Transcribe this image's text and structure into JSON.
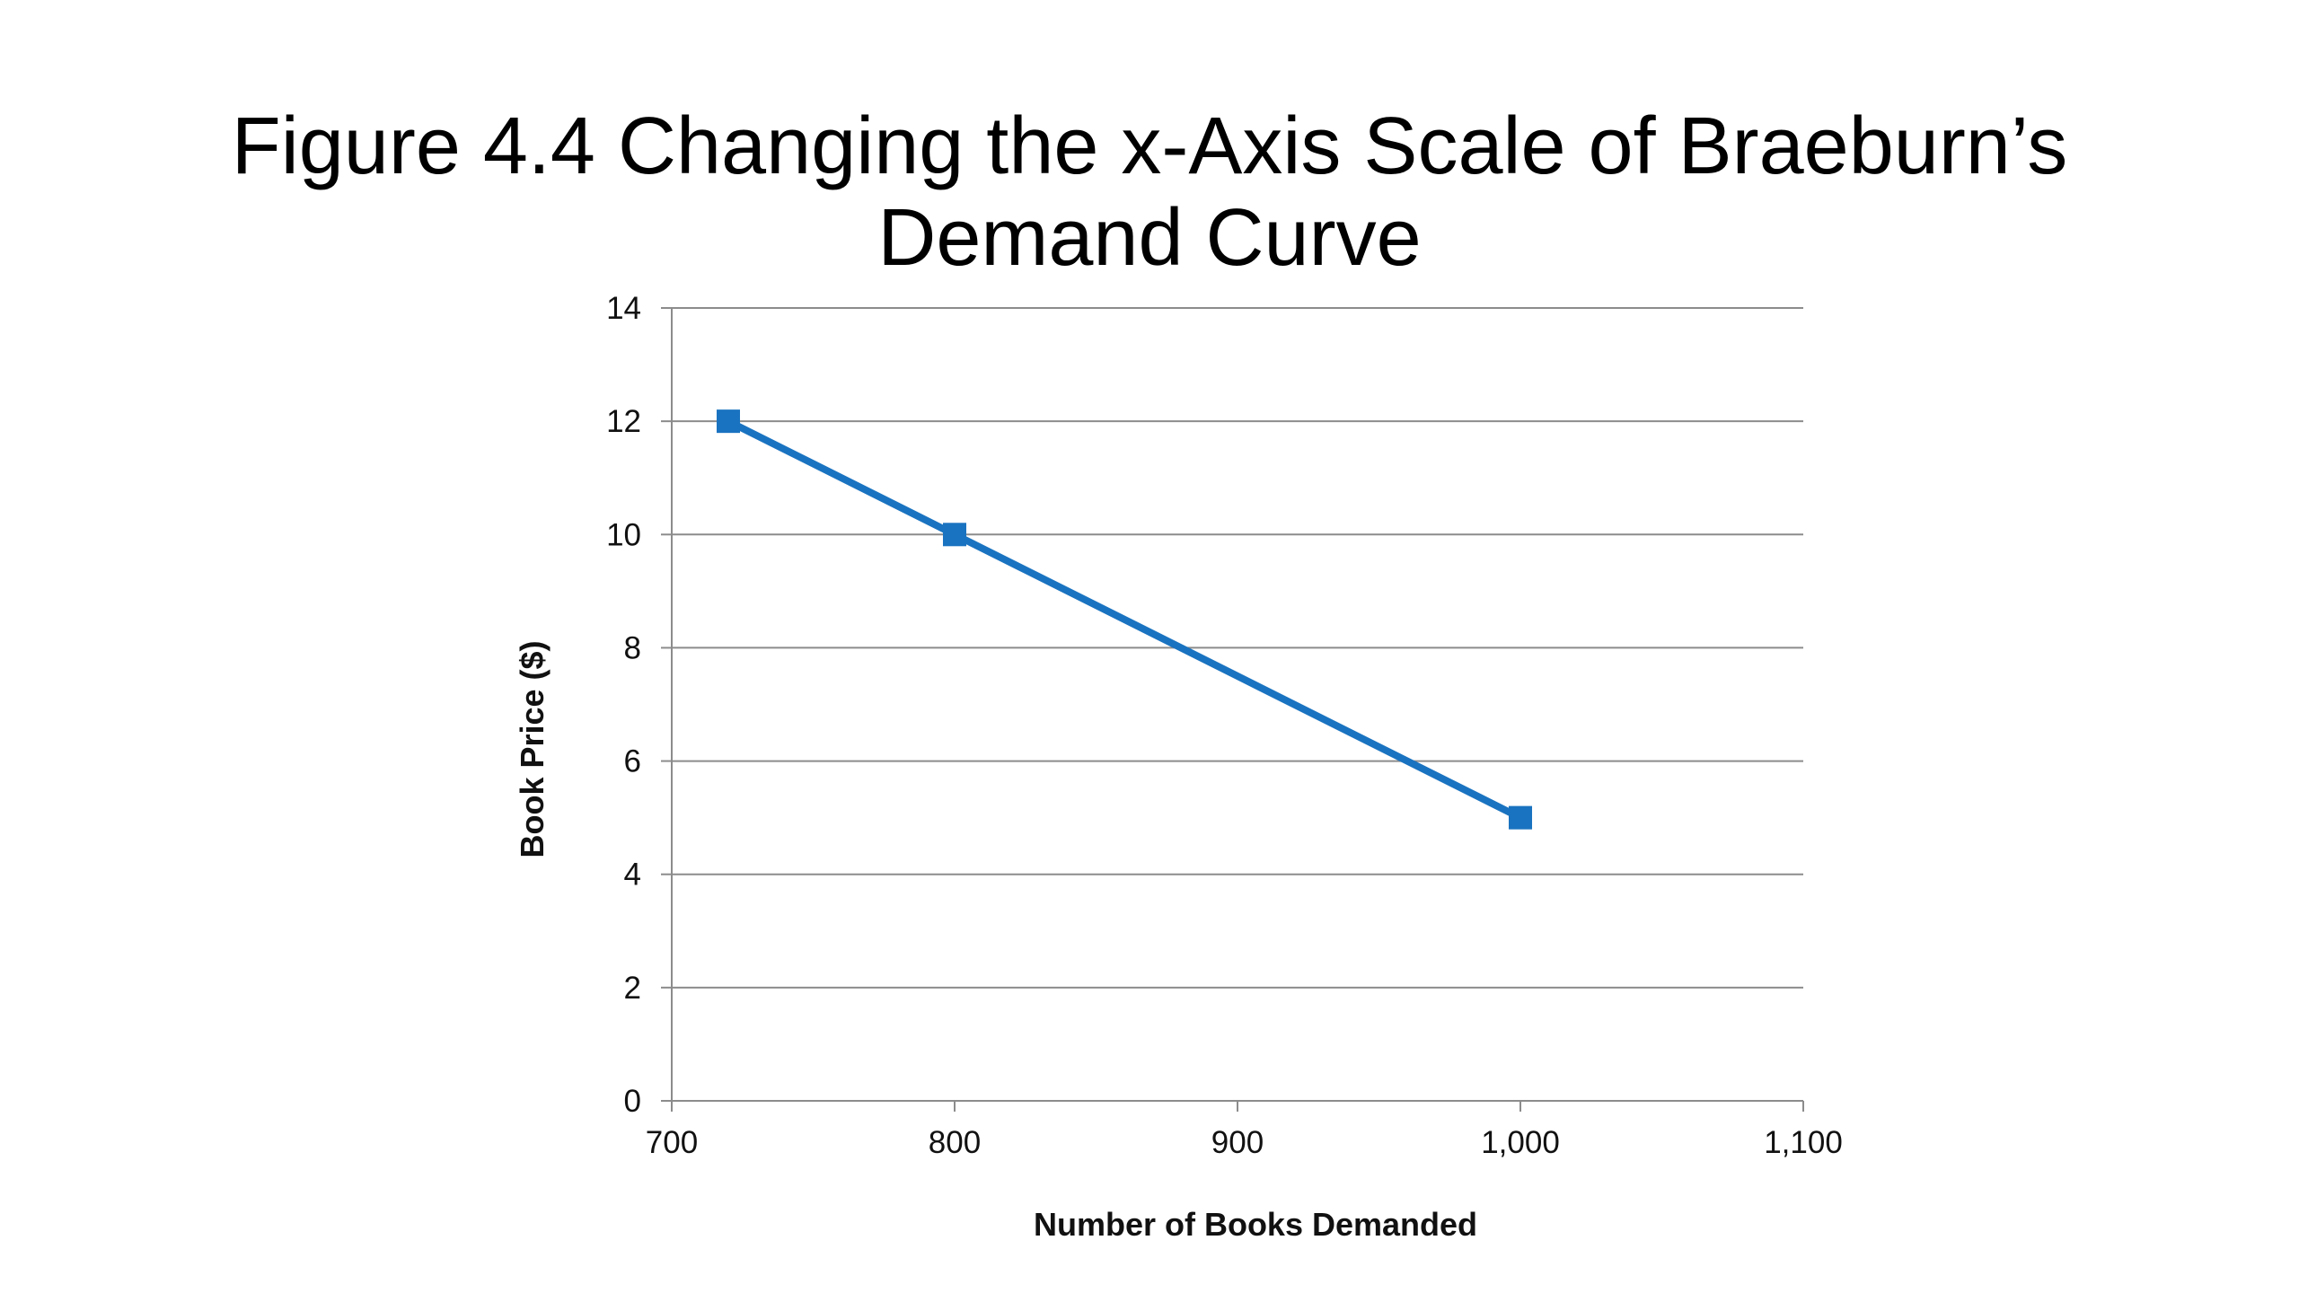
{
  "slide": {
    "title_line1": "Figure 4.4 Changing the x-Axis Scale of Braeburn’s",
    "title_line2": "Demand Curve"
  },
  "chart_data": {
    "type": "line",
    "title": "",
    "xlabel": "Number of Books Demanded",
    "ylabel": "Book Price ($)",
    "xlim": [
      700,
      1100
    ],
    "ylim": [
      0,
      14
    ],
    "x_ticks": [
      700,
      800,
      900,
      1000,
      1100
    ],
    "x_tick_labels": [
      "700",
      "800",
      "900",
      "1,000",
      "1,100"
    ],
    "y_ticks": [
      0,
      2,
      4,
      6,
      8,
      10,
      12,
      14
    ],
    "y_tick_labels": [
      "0",
      "2",
      "4",
      "6",
      "8",
      "10",
      "12",
      "14"
    ],
    "grid": "horizontal",
    "legend": "none",
    "series": [
      {
        "color": "#1a73c0",
        "marker": "square",
        "x": [
          720,
          800,
          1000
        ],
        "y": [
          12,
          10,
          5
        ]
      }
    ]
  }
}
